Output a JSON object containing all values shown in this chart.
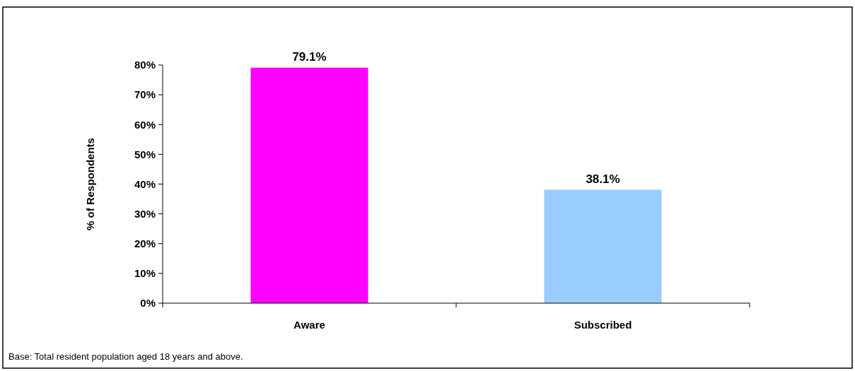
{
  "chart_data": {
    "type": "bar",
    "categories": [
      "Aware",
      "Subscribed"
    ],
    "values": [
      79.1,
      38.1
    ],
    "colors": [
      "#ff00ff",
      "#99ccff"
    ],
    "value_labels": [
      "79.1%",
      "38.1%"
    ],
    "ylabel": "% of Respondents",
    "ylim": [
      0,
      80
    ],
    "yticks": [
      {
        "value": 0,
        "label": "0%"
      },
      {
        "value": 10,
        "label": "10%"
      },
      {
        "value": 20,
        "label": "20%"
      },
      {
        "value": 30,
        "label": "30%"
      },
      {
        "value": 40,
        "label": "40%"
      },
      {
        "value": 50,
        "label": "50%"
      },
      {
        "value": 60,
        "label": "60%"
      },
      {
        "value": 70,
        "label": "70%"
      },
      {
        "value": 80,
        "label": "80%"
      }
    ],
    "grid": false,
    "annotations": [
      "Base: Total resident population aged 18 years and above."
    ]
  }
}
